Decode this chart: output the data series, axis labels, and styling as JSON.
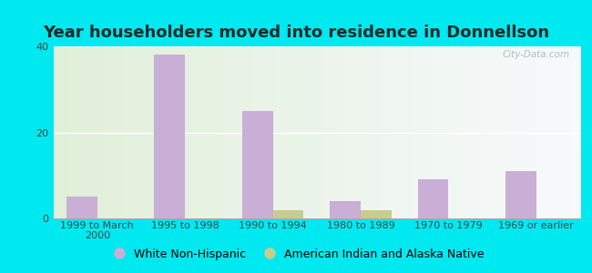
{
  "title": "Year householders moved into residence in Donnellson",
  "categories": [
    "1999 to March\n2000",
    "1995 to 1998",
    "1990 to 1994",
    "1980 to 1989",
    "1970 to 1979",
    "1969 or earlier"
  ],
  "white_non_hispanic": [
    5,
    38,
    25,
    4,
    9,
    11
  ],
  "american_indian": [
    0,
    0,
    2,
    2,
    0,
    0
  ],
  "bar_color_white": "#c9aed6",
  "bar_color_indian": "#c8cc8e",
  "background_outer": "#00e8f0",
  "ylim": [
    0,
    40
  ],
  "yticks": [
    0,
    20,
    40
  ],
  "legend_labels": [
    "White Non-Hispanic",
    "American Indian and Alaska Native"
  ],
  "title_fontsize": 13,
  "tick_fontsize": 8,
  "legend_fontsize": 9,
  "bar_width": 0.35,
  "watermark": "City-Data.com"
}
